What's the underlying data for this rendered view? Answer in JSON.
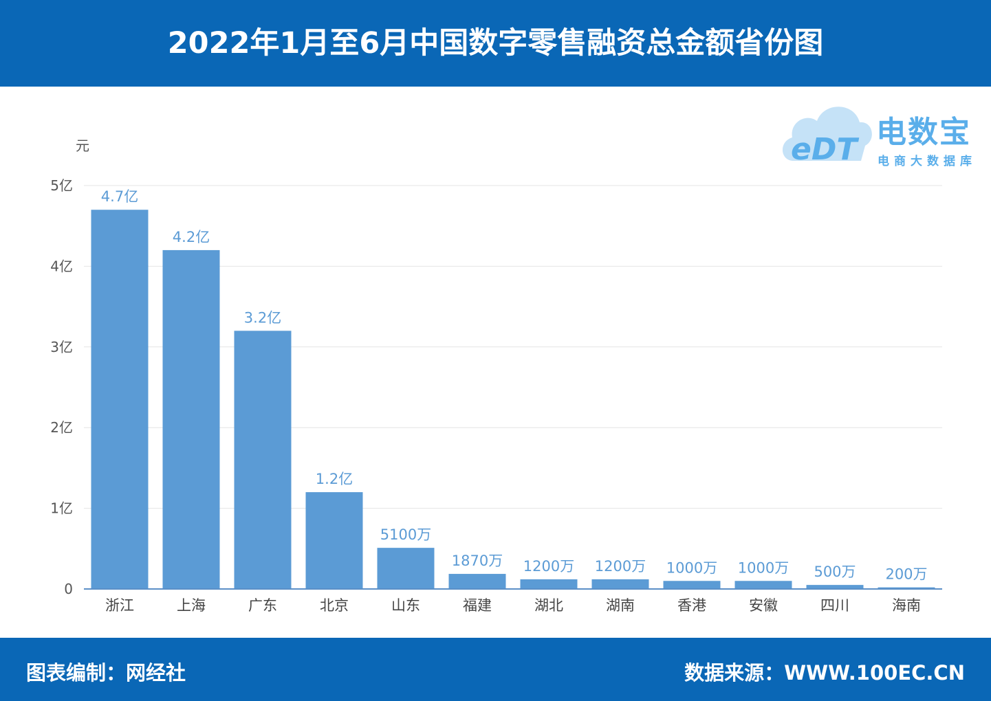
{
  "header": {
    "title": "2022年1月至6月中国数字零售融资总金额省份图"
  },
  "footer": {
    "compiled_by": "图表编制：网经社",
    "source": "数据来源：WWW.100EC.CN"
  },
  "logo": {
    "mark": "eDT",
    "name": "电数宝",
    "subtitle": "电商大数据库"
  },
  "colors": {
    "bar": "#5b9bd5",
    "label": "#5b9bd5",
    "header": "#0a67b6"
  },
  "chart_data": {
    "type": "bar",
    "unit_label": "元",
    "categories": [
      "浙江",
      "上海",
      "广东",
      "北京",
      "山东",
      "福建",
      "湖北",
      "湖南",
      "香港",
      "安徽",
      "四川",
      "海南"
    ],
    "values": [
      470000000,
      420000000,
      320000000,
      120000000,
      51000000,
      18700000,
      12000000,
      12000000,
      10000000,
      10000000,
      5000000,
      2000000
    ],
    "data_labels": [
      "4.7亿",
      "4.2亿",
      "3.2亿",
      "1.2亿",
      "5100万",
      "1870万",
      "1200万",
      "1200万",
      "1000万",
      "1000万",
      "500万",
      "200万"
    ],
    "yticks": [
      0,
      100000000,
      200000000,
      300000000,
      400000000,
      500000000
    ],
    "ytick_labels": [
      "0",
      "1亿",
      "2亿",
      "3亿",
      "4亿",
      "5亿"
    ],
    "ylim": [
      0,
      500000000
    ],
    "grid": true,
    "legend": "none"
  }
}
